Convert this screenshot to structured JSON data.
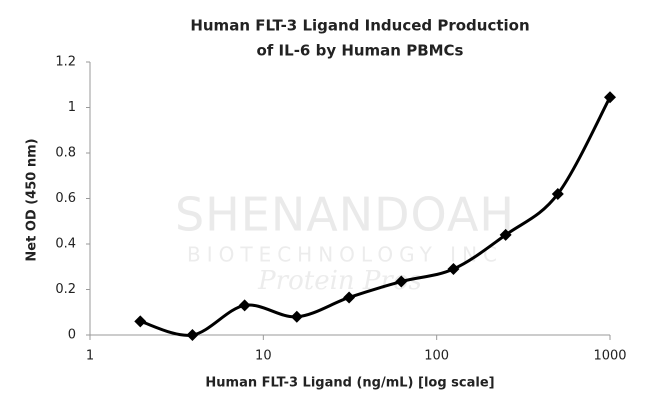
{
  "chart_data": {
    "type": "line",
    "title": [
      "Human FLT-3 Ligand Induced Production",
      "of IL-6 by Human PBMCs"
    ],
    "x_label": "Human FLT-3 Ligand (ng/mL) [log scale]",
    "y_label": "Net OD (450 nm)",
    "x": [
      1.95,
      3.9,
      7.8,
      15.6,
      31.25,
      62.5,
      125,
      250,
      500,
      1000
    ],
    "series": [
      {
        "name": "IL-6",
        "color": "#000000",
        "values": [
          0.06,
          0.0,
          0.13,
          0.08,
          0.165,
          0.235,
          0.29,
          0.44,
          0.62,
          1.045
        ]
      }
    ],
    "xscale": "log",
    "xlim": [
      1,
      1000
    ],
    "xticks": [
      1,
      10,
      100,
      1000
    ],
    "ylim": [
      0,
      1.2
    ],
    "yticks": [
      0,
      0.2,
      0.4,
      0.6,
      0.8,
      1,
      1.2
    ],
    "grid": false,
    "watermark": [
      "SHENANDOAH",
      "BIOTECHNOLOGY INC",
      "Protein Pros"
    ]
  }
}
